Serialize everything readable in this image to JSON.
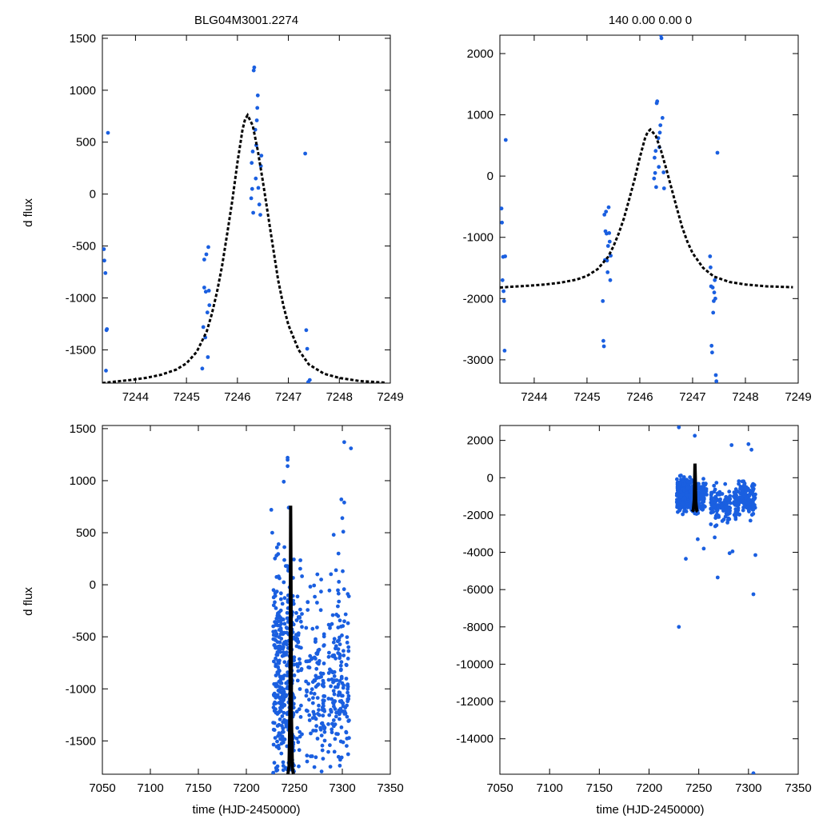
{
  "colors": {
    "points": "#1a5fe0",
    "model": "#000000",
    "frame": "#000000"
  },
  "chart_data": [
    {
      "id": "top-left",
      "type": "scatter",
      "title": "BLG04M3001.2274",
      "xlabel": "",
      "ylabel": "d flux",
      "xlim": [
        7243.35,
        7249.0
      ],
      "ylim": [
        -1820,
        1530
      ],
      "xticks": [
        7244,
        7245,
        7246,
        7247,
        7248,
        7249
      ],
      "yticks": [
        -1500,
        -1000,
        -500,
        0,
        500,
        1000,
        1500
      ],
      "model": {
        "name": "model",
        "x": [
          7243.35,
          7243.6,
          7243.9,
          7244.2,
          7244.5,
          7244.8,
          7245.0,
          7245.2,
          7245.4,
          7245.5,
          7245.6,
          7245.7,
          7245.8,
          7245.9,
          7246.0,
          7246.1,
          7246.15,
          7246.2,
          7246.3,
          7246.4,
          7246.5,
          7246.6,
          7246.7,
          7246.8,
          7246.9,
          7247.0,
          7247.2,
          7247.4,
          7247.7,
          7248.0,
          7248.4,
          7248.9
        ],
        "y": [
          -1820,
          -1805,
          -1790,
          -1770,
          -1740,
          -1690,
          -1630,
          -1520,
          -1320,
          -1150,
          -940,
          -690,
          -380,
          -60,
          300,
          620,
          720,
          760,
          660,
          420,
          120,
          -200,
          -520,
          -830,
          -1070,
          -1260,
          -1500,
          -1640,
          -1730,
          -1770,
          -1800,
          -1815
        ]
      },
      "series": [
        {
          "name": "data",
          "x": [
            7243.38,
            7243.39,
            7243.41,
            7243.42,
            7243.43,
            7243.44,
            7243.46,
            7245.31,
            7245.33,
            7245.35,
            7245.35,
            7245.37,
            7245.38,
            7245.39,
            7245.41,
            7245.42,
            7245.43,
            7245.44,
            7245.45,
            7246.27,
            7246.28,
            7246.29,
            7246.3,
            7246.31,
            7246.32,
            7246.33,
            7246.35,
            7246.36,
            7246.37,
            7246.38,
            7246.39,
            7246.4,
            7246.41,
            7246.43,
            7246.45,
            7246.46,
            7246.47,
            7247.33,
            7247.35,
            7247.37,
            7247.39,
            7247.42
          ],
          "y": [
            -530,
            -640,
            -760,
            -1700,
            -1310,
            -1300,
            590,
            -1680,
            -1280,
            -630,
            -900,
            -1380,
            -940,
            -580,
            -1140,
            -1570,
            -510,
            -930,
            -1070,
            -40,
            300,
            50,
            410,
            -180,
            1190,
            1220,
            620,
            150,
            470,
            710,
            830,
            950,
            60,
            -100,
            -200,
            270,
            370,
            390,
            -1310,
            -1490,
            -1810,
            -1790
          ]
        }
      ]
    },
    {
      "id": "top-right",
      "type": "scatter",
      "title": "140  0.00  0.00  0",
      "xlabel": "",
      "ylabel": "",
      "xlim": [
        7243.35,
        7249.0
      ],
      "ylim": [
        -3380,
        2300
      ],
      "xticks": [
        7244,
        7245,
        7246,
        7247,
        7248,
        7249
      ],
      "yticks": [
        -3000,
        -2000,
        -1000,
        0,
        1000,
        2000
      ],
      "model": {
        "name": "model",
        "x": [
          7243.35,
          7243.6,
          7243.9,
          7244.2,
          7244.5,
          7244.8,
          7245.0,
          7245.2,
          7245.4,
          7245.5,
          7245.6,
          7245.7,
          7245.8,
          7245.9,
          7246.0,
          7246.1,
          7246.15,
          7246.2,
          7246.3,
          7246.4,
          7246.5,
          7246.6,
          7246.7,
          7246.8,
          7246.9,
          7247.0,
          7247.2,
          7247.4,
          7247.7,
          7248.0,
          7248.4,
          7248.9
        ],
        "y": [
          -1820,
          -1805,
          -1790,
          -1770,
          -1740,
          -1690,
          -1630,
          -1520,
          -1320,
          -1150,
          -940,
          -690,
          -380,
          -60,
          300,
          620,
          720,
          760,
          660,
          420,
          120,
          -200,
          -520,
          -830,
          -1070,
          -1260,
          -1500,
          -1640,
          -1730,
          -1770,
          -1800,
          -1815
        ]
      },
      "series": [
        {
          "name": "data",
          "x": [
            7243.38,
            7243.39,
            7243.4,
            7243.41,
            7243.42,
            7243.43,
            7243.44,
            7243.45,
            7243.46,
            7245.3,
            7245.31,
            7245.32,
            7245.33,
            7245.34,
            7245.35,
            7245.36,
            7245.37,
            7245.38,
            7245.39,
            7245.4,
            7245.41,
            7245.42,
            7245.43,
            7245.44,
            7245.45,
            7246.27,
            7246.28,
            7246.29,
            7246.3,
            7246.31,
            7246.32,
            7246.33,
            7246.35,
            7246.36,
            7246.37,
            7246.38,
            7246.39,
            7246.4,
            7246.41,
            7246.43,
            7246.45,
            7246.46,
            7247.33,
            7247.34,
            7247.35,
            7247.36,
            7247.37,
            7247.38,
            7247.39,
            7247.4,
            7247.41,
            7247.42,
            7247.43,
            7247.44,
            7247.45,
            7247.47
          ],
          "y": [
            -530,
            -760,
            -1700,
            -1320,
            -1880,
            -2040,
            -2850,
            -1310,
            590,
            -2040,
            -2690,
            -2780,
            -630,
            -1370,
            -900,
            -580,
            -940,
            -1380,
            -1570,
            -1140,
            -510,
            -930,
            -1070,
            -1700,
            -1300,
            -40,
            300,
            50,
            410,
            -180,
            1190,
            1220,
            620,
            150,
            470,
            710,
            830,
            2300,
            2250,
            950,
            60,
            -200,
            -1310,
            -1490,
            -1800,
            -2770,
            -2880,
            -1820,
            -2230,
            -2040,
            -1900,
            -1700,
            -2000,
            -3250,
            -3350,
            380
          ]
        }
      ]
    },
    {
      "id": "bottom-left",
      "type": "scatter",
      "title": "",
      "xlabel": "time (HJD-2450000)",
      "ylabel": "d flux",
      "xlim": [
        7050,
        7350
      ],
      "ylim": [
        -1820,
        1530
      ],
      "xticks": [
        7050,
        7100,
        7150,
        7200,
        7250,
        7300,
        7350
      ],
      "yticks": [
        -1500,
        -1000,
        -500,
        0,
        500,
        1000,
        1500
      ],
      "model": {
        "name": "model",
        "x": [
          7243.35,
          7244.5,
          7245.5,
          7246.0,
          7246.2,
          7246.5,
          7247.0,
          7248.0,
          7249.0
        ],
        "y": [
          -1820,
          -1740,
          -1150,
          300,
          760,
          120,
          -1260,
          -1770,
          -1815
        ]
      },
      "series": [
        {
          "name": "data",
          "x": [],
          "y": []
        }
      ]
    },
    {
      "id": "bottom-right",
      "type": "scatter",
      "title": "",
      "xlabel": "time (HJD-2450000)",
      "ylabel": "",
      "xlim": [
        7050,
        7350
      ],
      "ylim": [
        -15900,
        2800
      ],
      "xticks": [
        7050,
        7100,
        7150,
        7200,
        7250,
        7300,
        7350
      ],
      "yticks": [
        -14000,
        -12000,
        -10000,
        -8000,
        -6000,
        -4000,
        -2000,
        0,
        2000
      ],
      "model": {
        "name": "model",
        "x": [
          7243.35,
          7244.5,
          7245.5,
          7246.0,
          7246.2,
          7246.5,
          7247.0,
          7248.0,
          7249.0
        ],
        "y": [
          -1820,
          -1740,
          -1150,
          300,
          760,
          120,
          -1260,
          -1770,
          -1815
        ]
      },
      "series": [
        {
          "name": "data",
          "x": [],
          "y": []
        }
      ]
    }
  ]
}
